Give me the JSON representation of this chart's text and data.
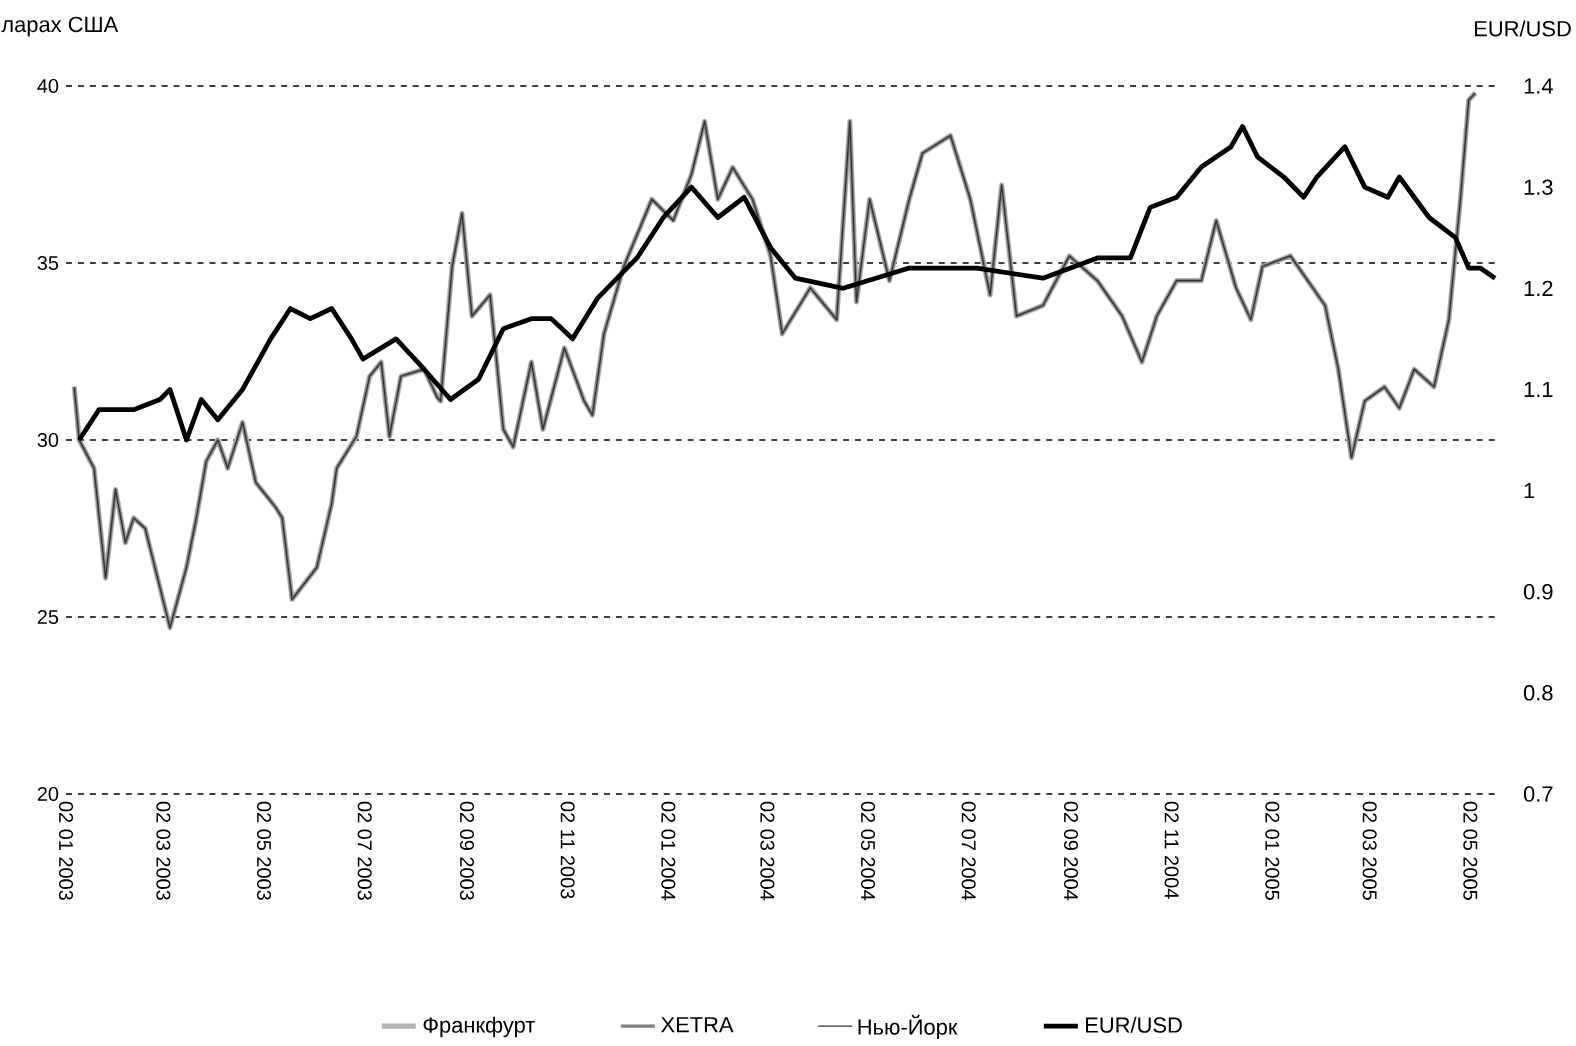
{
  "chart_data": {
    "type": "line",
    "ylabel": "ларах США",
    "y2label": "EUR/USD",
    "xlim": [
      "2003-01-02",
      "2005-05-20"
    ],
    "xticks": [
      {
        "value": "2003-01-02",
        "label": "02 01 2003"
      },
      {
        "value": "2003-03-02",
        "label": "02 03 2003"
      },
      {
        "value": "2003-05-02",
        "label": "02 05 2003"
      },
      {
        "value": "2003-07-02",
        "label": "02 07 2003"
      },
      {
        "value": "2003-09-02",
        "label": "02 09 2003"
      },
      {
        "value": "2003-11-02",
        "label": "02 11 2003"
      },
      {
        "value": "2004-01-02",
        "label": "02 01 2004"
      },
      {
        "value": "2004-03-02",
        "label": "02 03 2004"
      },
      {
        "value": "2004-05-02",
        "label": "02 05 2004"
      },
      {
        "value": "2004-07-02",
        "label": "02 07 2004"
      },
      {
        "value": "2004-09-02",
        "label": "02 09 2004"
      },
      {
        "value": "2004-11-02",
        "label": "02 11 2004"
      },
      {
        "value": "2005-01-02",
        "label": "02 01 2005"
      },
      {
        "value": "2005-03-02",
        "label": "02 03 2005"
      },
      {
        "value": "2005-05-02",
        "label": "02 05 2005"
      }
    ],
    "ylim": [
      20,
      40
    ],
    "yticks": [
      20,
      25,
      30,
      35,
      40
    ],
    "y2lim": [
      0.7,
      1.4
    ],
    "y2ticks": [
      0.7,
      0.8,
      0.9,
      1,
      1.1,
      1.2,
      1.3,
      1.4
    ],
    "grid": "y",
    "legend": "bottom",
    "marker": "none",
    "line_style": "solid",
    "series": [
      {
        "name": "Франкфурт",
        "color": "#b4b4b4",
        "x": [
          "2003-01-07",
          "2003-01-10",
          "2003-01-19",
          "2003-01-26",
          "2003-02-01",
          "2003-02-07",
          "2003-02-12",
          "2003-02-19",
          "2003-03-06",
          "2003-03-16",
          "2003-03-22",
          "2003-03-28",
          "2003-04-04",
          "2003-04-10",
          "2003-04-19",
          "2003-04-27",
          "2003-05-09",
          "2003-05-13",
          "2003-05-19",
          "2003-06-03",
          "2003-06-12",
          "2003-06-15",
          "2003-06-27",
          "2003-07-05",
          "2003-07-12",
          "2003-07-17",
          "2003-07-24",
          "2003-08-07",
          "2003-08-15",
          "2003-08-17",
          "2003-08-24",
          "2003-08-30",
          "2003-09-05",
          "2003-09-16",
          "2003-09-24",
          "2003-09-30",
          "2003-10-11",
          "2003-10-18",
          "2003-10-31",
          "2003-11-12",
          "2003-11-17",
          "2003-11-24",
          "2003-12-06",
          "2003-12-23",
          "2004-01-05",
          "2004-01-16",
          "2004-01-24",
          "2004-02-01",
          "2004-02-10",
          "2004-02-22",
          "2004-03-04",
          "2004-03-11",
          "2004-03-28",
          "2004-04-13",
          "2004-04-21",
          "2004-04-25",
          "2004-05-03",
          "2004-05-15",
          "2004-05-27",
          "2004-06-04",
          "2004-06-21",
          "2004-07-03",
          "2004-07-15",
          "2004-07-22",
          "2004-07-31",
          "2004-08-16",
          "2004-09-01",
          "2004-09-18",
          "2004-10-03",
          "2004-10-15",
          "2004-10-24",
          "2004-11-05",
          "2004-11-20",
          "2004-11-29",
          "2004-12-11",
          "2004-12-20",
          "2004-12-27",
          "2005-01-13",
          "2005-02-03",
          "2005-02-11",
          "2005-02-19",
          "2005-02-27",
          "2005-03-11",
          "2005-03-20",
          "2005-03-29",
          "2005-04-10",
          "2005-04-19",
          "2005-04-26",
          "2005-05-01",
          "2005-05-05"
        ],
        "values": [
          31.5,
          30.0,
          29.2,
          26.1,
          28.6,
          27.1,
          27.8,
          27.5,
          24.7,
          26.4,
          27.8,
          29.4,
          30.0,
          29.2,
          30.5,
          28.8,
          28.1,
          27.8,
          25.5,
          26.4,
          28.2,
          29.2,
          30.1,
          31.8,
          32.2,
          30.1,
          31.8,
          32.0,
          31.2,
          31.1,
          34.9,
          36.4,
          33.5,
          34.1,
          30.3,
          29.8,
          32.2,
          30.3,
          32.6,
          31.1,
          30.7,
          33.0,
          34.9,
          36.8,
          36.2,
          37.5,
          39.0,
          36.8,
          37.7,
          36.8,
          35.2,
          33.0,
          34.3,
          33.4,
          39.0,
          33.9,
          36.8,
          34.5,
          36.8,
          38.1,
          38.6,
          36.8,
          34.1,
          37.2,
          33.5,
          33.8,
          35.2,
          34.5,
          33.5,
          32.2,
          33.5,
          34.5,
          34.5,
          36.2,
          34.3,
          33.4,
          34.9,
          35.2,
          33.8,
          32.0,
          29.5,
          31.1,
          31.5,
          30.9,
          32.0,
          31.5,
          33.4,
          36.8,
          39.6,
          39.8
        ]
      },
      {
        "name": "XETRA",
        "color": "#808080",
        "x": [
          "2003-01-07",
          "2003-01-10",
          "2003-01-19",
          "2003-01-26",
          "2003-02-01",
          "2003-02-07",
          "2003-02-12",
          "2003-02-19",
          "2003-03-06",
          "2003-03-16",
          "2003-03-22",
          "2003-03-28",
          "2003-04-04",
          "2003-04-10",
          "2003-04-19",
          "2003-04-27",
          "2003-05-09",
          "2003-05-13",
          "2003-05-19",
          "2003-06-03",
          "2003-06-12",
          "2003-06-15",
          "2003-06-27",
          "2003-07-05",
          "2003-07-12",
          "2003-07-17",
          "2003-07-24",
          "2003-08-07",
          "2003-08-15",
          "2003-08-17",
          "2003-08-24",
          "2003-08-30",
          "2003-09-05",
          "2003-09-16",
          "2003-09-24",
          "2003-09-30",
          "2003-10-11",
          "2003-10-18",
          "2003-10-31",
          "2003-11-12",
          "2003-11-17",
          "2003-11-24",
          "2003-12-06",
          "2003-12-23",
          "2004-01-05",
          "2004-01-16",
          "2004-01-24",
          "2004-02-01",
          "2004-02-10",
          "2004-02-22",
          "2004-03-04",
          "2004-03-11",
          "2004-03-28",
          "2004-04-13",
          "2004-04-21",
          "2004-04-25",
          "2004-05-03",
          "2004-05-15",
          "2004-05-27",
          "2004-06-04",
          "2004-06-21",
          "2004-07-03",
          "2004-07-15",
          "2004-07-22",
          "2004-07-31",
          "2004-08-16",
          "2004-09-01",
          "2004-09-18",
          "2004-10-03",
          "2004-10-15",
          "2004-10-24",
          "2004-11-05",
          "2004-11-20",
          "2004-11-29",
          "2004-12-11",
          "2004-12-20",
          "2004-12-27",
          "2005-01-13",
          "2005-02-03",
          "2005-02-11",
          "2005-02-19",
          "2005-02-27",
          "2005-03-11",
          "2005-03-20",
          "2005-03-29",
          "2005-04-10",
          "2005-04-19",
          "2005-04-26",
          "2005-05-01",
          "2005-05-05"
        ],
        "values": [
          31.5,
          30.0,
          29.2,
          26.1,
          28.6,
          27.1,
          27.8,
          27.5,
          24.7,
          26.4,
          27.8,
          29.4,
          30.0,
          29.2,
          30.5,
          28.8,
          28.1,
          27.8,
          25.5,
          26.4,
          28.2,
          29.2,
          30.1,
          31.8,
          32.2,
          30.1,
          31.8,
          32.0,
          31.2,
          31.1,
          34.9,
          36.4,
          33.5,
          34.1,
          30.3,
          29.8,
          32.2,
          30.3,
          32.6,
          31.1,
          30.7,
          33.0,
          34.9,
          36.8,
          36.2,
          37.5,
          39.0,
          36.8,
          37.7,
          36.8,
          35.2,
          33.0,
          34.3,
          33.4,
          39.0,
          33.9,
          36.8,
          34.5,
          36.8,
          38.1,
          38.6,
          36.8,
          34.1,
          37.2,
          33.5,
          33.8,
          35.2,
          34.5,
          33.5,
          32.2,
          33.5,
          34.5,
          34.5,
          36.2,
          34.3,
          33.4,
          34.9,
          35.2,
          33.8,
          32.0,
          29.5,
          31.1,
          31.5,
          30.9,
          32.0,
          31.5,
          33.4,
          36.8,
          39.6,
          39.8
        ]
      },
      {
        "name": "Нью-Йорк",
        "color": "#303030",
        "x": [
          "2003-01-07",
          "2003-01-10",
          "2003-01-19",
          "2003-01-26",
          "2003-02-01",
          "2003-02-07",
          "2003-02-12",
          "2003-02-19",
          "2003-03-06",
          "2003-03-16",
          "2003-03-22",
          "2003-03-28",
          "2003-04-04",
          "2003-04-10",
          "2003-04-19",
          "2003-04-27",
          "2003-05-09",
          "2003-05-13",
          "2003-05-19",
          "2003-06-03",
          "2003-06-12",
          "2003-06-15",
          "2003-06-27",
          "2003-07-05",
          "2003-07-12",
          "2003-07-17",
          "2003-07-24",
          "2003-08-07",
          "2003-08-15",
          "2003-08-17",
          "2003-08-24",
          "2003-08-30",
          "2003-09-05",
          "2003-09-16",
          "2003-09-24",
          "2003-09-30",
          "2003-10-11",
          "2003-10-18",
          "2003-10-31",
          "2003-11-12",
          "2003-11-17",
          "2003-11-24",
          "2003-12-06",
          "2003-12-23",
          "2004-01-05",
          "2004-01-16",
          "2004-01-24",
          "2004-02-01",
          "2004-02-10",
          "2004-02-22",
          "2004-03-04",
          "2004-03-11",
          "2004-03-28",
          "2004-04-13",
          "2004-04-21",
          "2004-04-25",
          "2004-05-03",
          "2004-05-15",
          "2004-05-27",
          "2004-06-04",
          "2004-06-21",
          "2004-07-03",
          "2004-07-15",
          "2004-07-22",
          "2004-07-31",
          "2004-08-16",
          "2004-09-01",
          "2004-09-18",
          "2004-10-03",
          "2004-10-15",
          "2004-10-24",
          "2004-11-05",
          "2004-11-20",
          "2004-11-29",
          "2004-12-11",
          "2004-12-20",
          "2004-12-27",
          "2005-01-13",
          "2005-02-03",
          "2005-02-11",
          "2005-02-19",
          "2005-02-27",
          "2005-03-11",
          "2005-03-20",
          "2005-03-29",
          "2005-04-10",
          "2005-04-19",
          "2005-04-26",
          "2005-05-01",
          "2005-05-05"
        ],
        "values": [
          31.5,
          30.0,
          29.2,
          26.1,
          28.6,
          27.1,
          27.8,
          27.5,
          24.7,
          26.4,
          27.8,
          29.4,
          30.0,
          29.2,
          30.5,
          28.8,
          28.1,
          27.8,
          25.5,
          26.4,
          28.2,
          29.2,
          30.1,
          31.8,
          32.2,
          30.1,
          31.8,
          32.0,
          31.2,
          31.1,
          34.9,
          36.4,
          33.5,
          34.1,
          30.3,
          29.8,
          32.2,
          30.3,
          32.6,
          31.1,
          30.7,
          33.0,
          34.9,
          36.8,
          36.2,
          37.5,
          39.0,
          36.8,
          37.7,
          36.8,
          35.2,
          33.0,
          34.3,
          33.4,
          39.0,
          33.9,
          36.8,
          34.5,
          36.8,
          38.1,
          38.6,
          36.8,
          34.1,
          37.2,
          33.5,
          33.8,
          35.2,
          34.5,
          33.5,
          32.2,
          33.5,
          34.5,
          34.5,
          36.2,
          34.3,
          33.4,
          34.9,
          35.2,
          33.8,
          32.0,
          29.5,
          31.1,
          31.5,
          30.9,
          32.0,
          31.5,
          33.4,
          36.8,
          39.6,
          39.8
        ]
      },
      {
        "name": "EUR/USD",
        "color": "#000000",
        "axis": "y2",
        "x": [
          "2003-01-10",
          "2003-01-22",
          "2003-02-12",
          "2003-02-28",
          "2003-03-06",
          "2003-03-16",
          "2003-03-25",
          "2003-04-04",
          "2003-04-19",
          "2003-05-06",
          "2003-05-18",
          "2003-05-30",
          "2003-06-12",
          "2003-06-24",
          "2003-07-01",
          "2003-07-21",
          "2003-08-07",
          "2003-08-23",
          "2003-09-09",
          "2003-09-24",
          "2003-10-11",
          "2003-10-23",
          "2003-11-05",
          "2003-11-20",
          "2003-12-02",
          "2003-12-14",
          "2003-12-30",
          "2004-01-16",
          "2004-02-01",
          "2004-02-17",
          "2004-03-04",
          "2004-03-19",
          "2004-04-17",
          "2004-05-27",
          "2004-07-07",
          "2004-08-16",
          "2004-09-18",
          "2004-10-08",
          "2004-10-20",
          "2004-11-05",
          "2004-11-20",
          "2004-12-08",
          "2004-12-15",
          "2004-12-24",
          "2005-01-09",
          "2005-01-21",
          "2005-01-29",
          "2005-02-15",
          "2005-02-27",
          "2005-03-13",
          "2005-03-20",
          "2005-04-07",
          "2005-04-23",
          "2005-05-01",
          "2005-05-08",
          "2005-05-17"
        ],
        "values": [
          1.05,
          1.08,
          1.08,
          1.09,
          1.1,
          1.05,
          1.09,
          1.07,
          1.1,
          1.15,
          1.18,
          1.17,
          1.18,
          1.15,
          1.13,
          1.15,
          1.12,
          1.09,
          1.11,
          1.16,
          1.17,
          1.17,
          1.15,
          1.19,
          1.21,
          1.23,
          1.27,
          1.3,
          1.27,
          1.29,
          1.24,
          1.21,
          1.2,
          1.22,
          1.22,
          1.21,
          1.23,
          1.23,
          1.28,
          1.29,
          1.32,
          1.34,
          1.36,
          1.33,
          1.31,
          1.29,
          1.31,
          1.34,
          1.3,
          1.29,
          1.31,
          1.27,
          1.25,
          1.22,
          1.22,
          1.21
        ]
      }
    ]
  }
}
